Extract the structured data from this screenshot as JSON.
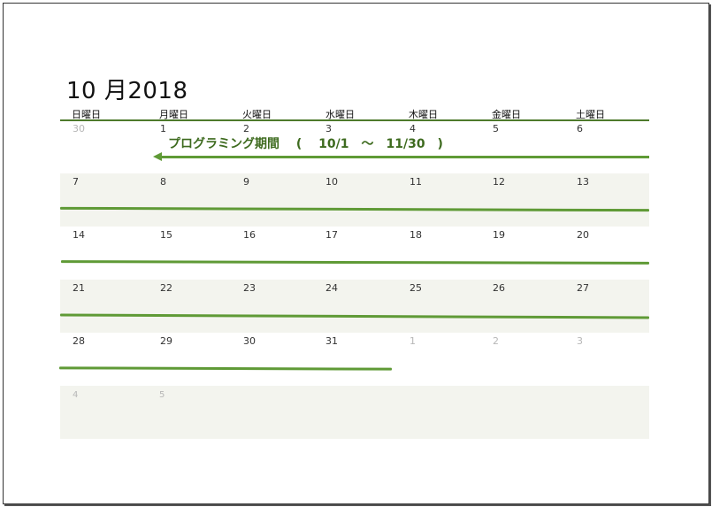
{
  "calendar": {
    "title": "10 月2018",
    "weekdays": [
      "日曜日",
      "月曜日",
      "火曜日",
      "水曜日",
      "木曜日",
      "金曜日",
      "土曜日"
    ],
    "weeks": [
      [
        "30",
        "1",
        "2",
        "3",
        "4",
        "5",
        "6"
      ],
      [
        "7",
        "8",
        "9",
        "10",
        "11",
        "12",
        "13"
      ],
      [
        "14",
        "15",
        "16",
        "17",
        "18",
        "19",
        "20"
      ],
      [
        "21",
        "22",
        "23",
        "24",
        "25",
        "26",
        "27"
      ],
      [
        "28",
        "29",
        "30",
        "31",
        "1",
        "2",
        "3"
      ],
      [
        "4",
        "5"
      ]
    ],
    "banner": "プログラミング期間　 (　 10/1　～　11/30　)"
  },
  "colors": {
    "accent": "#5f9a36",
    "header_line": "#4e7a2c",
    "shade": "#f3f4ee",
    "muted_text": "#b7b7b7"
  }
}
